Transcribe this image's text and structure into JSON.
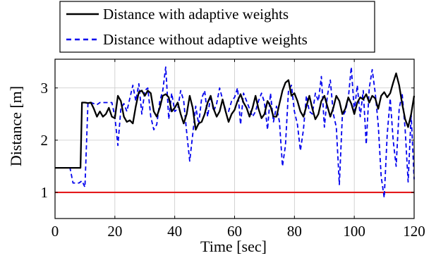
{
  "chart_data": {
    "type": "line",
    "xlabel": "Time [sec]",
    "ylabel": "Distance [m]",
    "xlim": [
      0,
      120
    ],
    "ylim": [
      0.5,
      3.55
    ],
    "xticks": [
      0,
      20,
      40,
      60,
      80,
      100,
      120
    ],
    "yticks": [
      1,
      2,
      3
    ],
    "grid": true,
    "legend_position": "top",
    "threshold": {
      "y": 1,
      "color": "#e41a1c"
    },
    "series": [
      {
        "name": "Distance with adaptive weights",
        "color": "#000000",
        "style": "solid",
        "x": [
          0,
          8.5,
          9,
          10,
          11,
          12,
          13,
          14,
          15,
          16,
          17,
          18,
          19,
          20,
          21,
          22,
          23,
          24,
          25,
          26,
          27,
          28,
          29,
          30,
          31,
          32,
          33,
          34,
          35,
          36,
          37,
          38,
          39,
          40,
          41,
          42,
          43,
          44,
          45,
          46,
          47,
          48,
          49,
          50,
          51,
          52,
          53,
          54,
          55,
          56,
          57,
          58,
          59,
          60,
          61,
          62,
          63,
          64,
          65,
          66,
          67,
          68,
          69,
          70,
          71,
          72,
          73,
          74,
          75,
          76,
          77,
          78,
          79,
          80,
          81,
          82,
          83,
          84,
          85,
          86,
          87,
          88,
          89,
          90,
          91,
          92,
          93,
          94,
          95,
          96,
          97,
          98,
          99,
          100,
          101,
          102,
          103,
          104,
          105,
          106,
          107,
          108,
          109,
          110,
          111,
          112,
          113,
          114,
          115,
          116,
          117,
          118,
          119,
          120
        ],
        "y": [
          1.47,
          1.47,
          2.72,
          2.72,
          2.71,
          2.72,
          2.6,
          2.45,
          2.55,
          2.45,
          2.5,
          2.62,
          2.45,
          2.42,
          2.85,
          2.75,
          2.45,
          2.35,
          2.38,
          2.32,
          2.65,
          2.92,
          2.95,
          2.85,
          2.95,
          2.9,
          2.55,
          2.45,
          2.62,
          2.85,
          2.88,
          2.82,
          2.55,
          2.62,
          2.72,
          2.5,
          2.32,
          2.5,
          2.85,
          2.62,
          2.2,
          2.32,
          2.35,
          2.5,
          2.72,
          2.85,
          2.6,
          2.45,
          2.55,
          2.78,
          2.55,
          2.35,
          2.5,
          2.58,
          2.75,
          2.88,
          2.72,
          2.62,
          2.45,
          2.62,
          2.85,
          2.6,
          2.42,
          2.5,
          2.75,
          2.65,
          2.45,
          2.45,
          2.7,
          2.95,
          3.1,
          3.15,
          2.85,
          2.9,
          2.75,
          2.55,
          2.45,
          2.65,
          2.85,
          2.6,
          2.4,
          2.5,
          2.75,
          2.85,
          2.65,
          2.45,
          2.62,
          2.85,
          2.75,
          2.5,
          2.6,
          2.82,
          2.7,
          2.5,
          2.72,
          2.82,
          2.78,
          2.88,
          2.72,
          2.85,
          2.8,
          2.6,
          2.85,
          2.92,
          2.82,
          2.9,
          3.1,
          3.28,
          3.05,
          2.7,
          2.4,
          2.25,
          2.5,
          2.85
        ]
      },
      {
        "name": "Distance without adaptive weights",
        "color": "#0000ee",
        "style": "dashed",
        "x": [
          0,
          5,
          6,
          7,
          8,
          9,
          10,
          11,
          12,
          13,
          14,
          15,
          16,
          17,
          18,
          19,
          20,
          21,
          22,
          23,
          24,
          25,
          26,
          27,
          28,
          29,
          30,
          31,
          32,
          33,
          34,
          35,
          36,
          37,
          38,
          39,
          40,
          41,
          42,
          43,
          44,
          45,
          46,
          47,
          48,
          49,
          50,
          51,
          52,
          53,
          54,
          55,
          56,
          57,
          58,
          59,
          60,
          61,
          62,
          63,
          64,
          65,
          66,
          67,
          68,
          69,
          70,
          71,
          72,
          73,
          74,
          75,
          76,
          77,
          78,
          79,
          80,
          81,
          82,
          83,
          84,
          85,
          86,
          87,
          88,
          89,
          90,
          91,
          92,
          93,
          94,
          95,
          96,
          97,
          98,
          99,
          100,
          101,
          102,
          103,
          104,
          105,
          106,
          107,
          108,
          109,
          110,
          111,
          112,
          113,
          114,
          115,
          116,
          117,
          118,
          119,
          120
        ],
        "y": [
          1.47,
          1.47,
          1.18,
          1.18,
          1.18,
          1.22,
          1.1,
          2.72,
          2.72,
          2.7,
          2.68,
          2.72,
          2.72,
          2.72,
          2.72,
          2.72,
          2.45,
          1.9,
          2.6,
          2.7,
          2.55,
          2.8,
          3.05,
          2.75,
          3.08,
          2.5,
          2.95,
          3.0,
          2.45,
          2.2,
          2.3,
          2.75,
          2.95,
          3.4,
          2.4,
          2.9,
          2.55,
          2.6,
          2.95,
          2.75,
          2.15,
          1.6,
          2.1,
          2.65,
          2.3,
          2.8,
          2.95,
          2.45,
          2.85,
          2.55,
          2.7,
          3.0,
          2.78,
          2.58,
          2.55,
          2.75,
          2.82,
          3.0,
          2.3,
          2.9,
          2.75,
          2.6,
          2.45,
          2.55,
          2.75,
          2.9,
          2.72,
          2.2,
          2.9,
          2.35,
          2.65,
          2.35,
          1.5,
          1.9,
          2.95,
          3.05,
          2.55,
          2.3,
          1.8,
          2.2,
          2.85,
          2.55,
          2.5,
          2.9,
          2.75,
          3.22,
          2.25,
          2.85,
          3.15,
          2.5,
          2.25,
          1.15,
          2.45,
          2.55,
          2.8,
          3.4,
          2.55,
          3.05,
          2.45,
          2.95,
          1.92,
          3.0,
          3.35,
          2.9,
          2.3,
          1.3,
          0.9,
          2.1,
          2.8,
          2.0,
          1.5,
          2.6,
          2.9,
          2.2,
          1.2,
          2.5,
          1.25
        ]
      }
    ]
  }
}
